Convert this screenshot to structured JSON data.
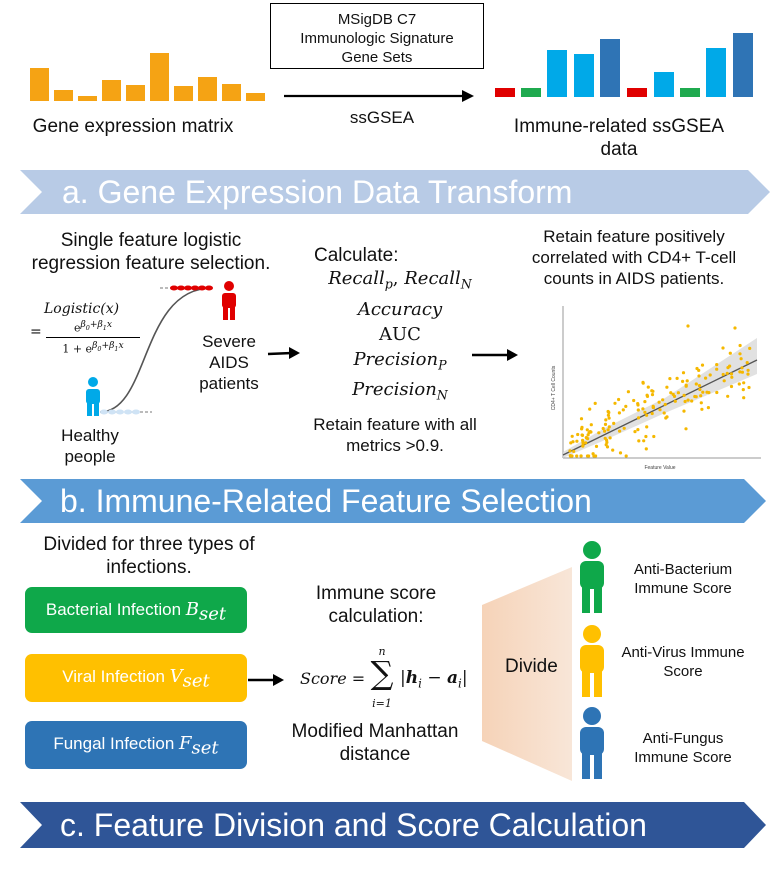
{
  "top": {
    "left_label": "Gene expression matrix",
    "box_line1": "MSigDB C7",
    "box_line2": "Immunologic Signature",
    "box_line3": "Gene Sets",
    "arrow_label": "ssGSEA",
    "right_label": "Immune-related ssGSEA data",
    "colors": {
      "orange": "#f5a314",
      "red": "#e00000",
      "green": "#1faa4f",
      "sky": "#00a9e8",
      "blue": "#2f74b5"
    }
  },
  "section_a": {
    "banner": "a. Gene Expression Data Transform",
    "banner_color": "#b8cbe6",
    "logistic_title": "Single feature logistic regression feature selection.",
    "formula_lhs": "Logistic(x)",
    "formula_num": "e^(β0+β1x)",
    "formula_den": "1 + e^(β0+β1x)",
    "severe_label": "Severe AIDS patients",
    "healthy_label": "Healthy people",
    "calc_title": "Calculate:",
    "metric_recall": "Recall",
    "metric_recall_p": "p",
    "metric_recall_n": "N",
    "metric_accuracy": "Accuracy",
    "metric_auc": "AUC",
    "metric_precision": "Precision",
    "metric_precision_p": "P",
    "metric_precision_n": "N",
    "retain_metrics": "Retain feature with all metrics >0.9.",
    "retain_cd4": "Retain feature positively correlated with CD4+ T-cell counts in AIDS patients.",
    "scatter_ylabel": "CD4+ T Cell Counts",
    "scatter_xlabel": "Feature Value"
  },
  "section_b": {
    "banner": "b. Immune-Related Feature Selection",
    "banner_color": "#5b9bd5",
    "divided_text": "Divided for three types of infections.",
    "bacterial": "Bacterial Infection ",
    "bacterial_sym": "B",
    "viral": "Viral Infection ",
    "viral_sym": "V",
    "fungal": "Fungal Infection ",
    "fungal_sym": "F",
    "set_sub": "set",
    "immune_calc": "Immune score calculation:",
    "score_lhs": "Score",
    "sum_top": "n",
    "sum_bottom": "i=1",
    "score_body": "|h_i − a_i|",
    "manhattan": "Modified Manhattan distance",
    "divide": "Divide",
    "anti_bacterium": "Anti-Bacterium Immune Score",
    "anti_virus": "Anti-Virus Immune Score",
    "anti_fungus": "Anti-Fungus Immune Score",
    "colors": {
      "green": "#0fa84a",
      "yellow": "#ffc000",
      "blue": "#2e74b5"
    }
  },
  "section_c": {
    "banner": "c. Feature Division and Score Calculation",
    "banner_color": "#2f5597"
  }
}
